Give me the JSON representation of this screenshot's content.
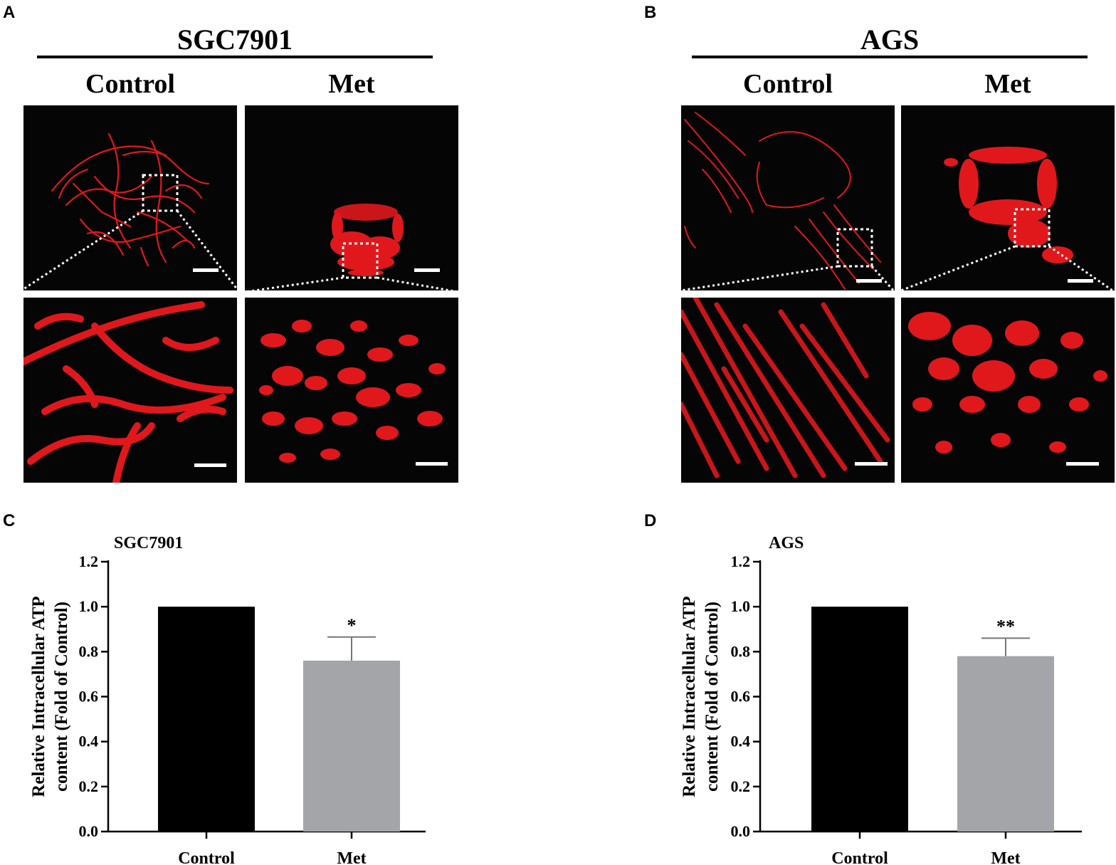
{
  "panels": {
    "a": {
      "letter": "A",
      "cell_line": "SGC7901",
      "conditions": [
        "Control",
        "Met"
      ]
    },
    "b": {
      "letter": "B",
      "cell_line": "AGS",
      "conditions": [
        "Control",
        "Met"
      ]
    },
    "c": {
      "letter": "C"
    },
    "d": {
      "letter": "D"
    }
  },
  "colors": {
    "control_bar": "#000000",
    "met_bar": "#a4a5a8",
    "mito_red": "#e0181c",
    "scale_bar": "#ffffff"
  },
  "chart_data": [
    {
      "type": "bar",
      "title": "SGC7901",
      "categories": [
        "Control",
        "Met"
      ],
      "values": [
        1.0,
        0.76
      ],
      "error": [
        0,
        0.105
      ],
      "significance": [
        "",
        "*"
      ],
      "ylabel_lines": [
        "Relative Intracellular ATP",
        "content (Fold of Control)"
      ],
      "ylim": [
        0,
        1.2
      ],
      "yticks": [
        "0.0",
        "0.2",
        "0.4",
        "0.6",
        "0.8",
        "1.0",
        "1.2"
      ]
    },
    {
      "type": "bar",
      "title": "AGS",
      "categories": [
        "Control",
        "Met"
      ],
      "values": [
        1.0,
        0.78
      ],
      "error": [
        0,
        0.08
      ],
      "significance": [
        "",
        "**"
      ],
      "ylabel_lines": [
        "Relative Intracellular ATP",
        "content (Fold of Control)"
      ],
      "ylim": [
        0,
        1.2
      ],
      "yticks": [
        "0.0",
        "0.2",
        "0.4",
        "0.6",
        "0.8",
        "1.0",
        "1.2"
      ]
    }
  ]
}
